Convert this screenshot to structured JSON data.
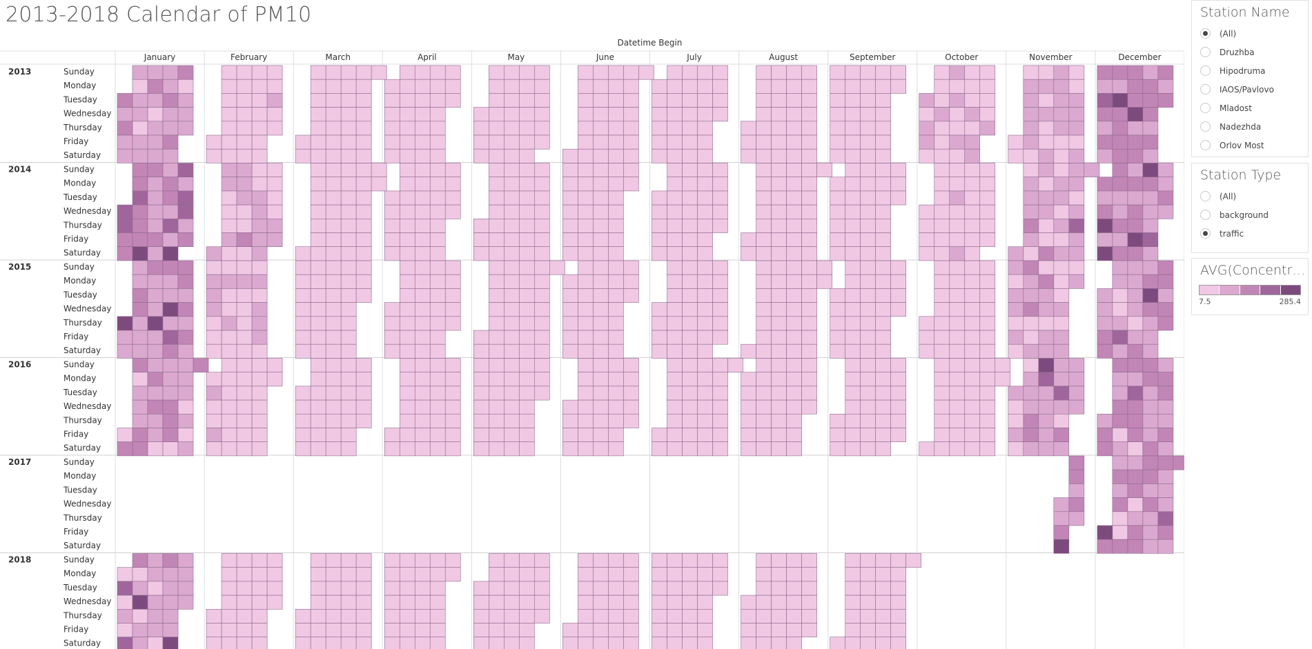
{
  "title": "2013-2018 Calendar of PM10",
  "filters": {
    "station_name": {
      "title": "Station Name",
      "options": [
        "(All)",
        "Druzhba",
        "Hipodruma",
        "IAOS/Pavlovo",
        "Mladost",
        "Nadezhda",
        "Orlov Most"
      ],
      "selected": "(All)"
    },
    "station_type": {
      "title": "Station Type",
      "options": [
        "(All)",
        "background",
        "traffic"
      ],
      "selected": "traffic"
    }
  },
  "legend": {
    "title": "AVG(Concentra...",
    "min": "7.5",
    "max": "285.4",
    "colors": [
      "#f0c8e4",
      "#dba9d0",
      "#c286b6",
      "#a0669c",
      "#7d4a7e"
    ]
  },
  "chart_data": {
    "type": "heatmap",
    "title": "2013-2018 Calendar of PM10",
    "column_header": "Datetime Begin",
    "months": [
      "January",
      "February",
      "March",
      "April",
      "May",
      "June",
      "July",
      "August",
      "September",
      "October",
      "November",
      "December"
    ],
    "years": [
      "2013",
      "2014",
      "2015",
      "2016",
      "2017",
      "2018"
    ],
    "weekdays": [
      "Sunday",
      "Monday",
      "Tuesday",
      "Wednesday",
      "Thursday",
      "Friday",
      "Saturday"
    ],
    "color_range": [
      7.5,
      285.4
    ],
    "coverage": {
      "2013": "full",
      "2014": "full",
      "2015": "full",
      "2016": "full",
      "2017": "Nov–Dec partial",
      "2018": "Jan–Sep"
    },
    "cell_value_estimates": {
      "2013": {
        "January": 80,
        "February": 40,
        "March": 30,
        "April": 22,
        "May": 22,
        "June": 20,
        "July": 20,
        "August": 20,
        "September": 25,
        "October": 50,
        "November": 60,
        "December": 120
      },
      "2014": {
        "January": 120,
        "February": 60,
        "March": 35,
        "April": 22,
        "May": 20,
        "June": 20,
        "July": 20,
        "August": 20,
        "September": 22,
        "October": 40,
        "November": 70,
        "December": 110
      },
      "2015": {
        "January": 100,
        "February": 50,
        "March": 35,
        "April": 22,
        "May": 20,
        "June": 20,
        "July": 20,
        "August": 20,
        "September": 25,
        "October": 35,
        "November": 65,
        "December": 90
      },
      "2016": {
        "January": 90,
        "February": 50,
        "March": 25,
        "April": 22,
        "May": 20,
        "June": 20,
        "July": 20,
        "August": 20,
        "September": 22,
        "October": 30,
        "November": 80,
        "December": 95
      },
      "2017": {
        "November": 110,
        "December": 90
      },
      "2018": {
        "January": 85,
        "February": 35,
        "March": 30,
        "April": 22,
        "May": 20,
        "June": 20,
        "July": 20,
        "August": 20,
        "September": 20
      }
    }
  }
}
